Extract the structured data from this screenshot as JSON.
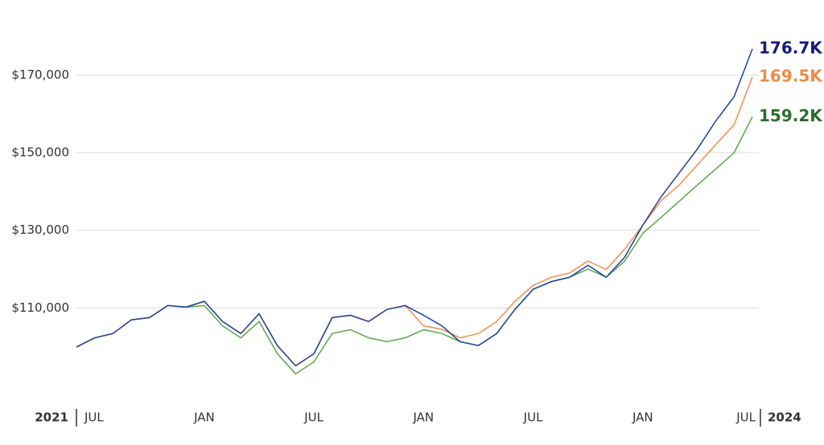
{
  "chart_data": {
    "type": "line",
    "x": [
      "2021-06",
      "2021-07",
      "2021-08",
      "2021-09",
      "2021-10",
      "2021-11",
      "2021-12",
      "2022-01",
      "2022-02",
      "2022-03",
      "2022-04",
      "2022-05",
      "2022-06",
      "2022-07",
      "2022-08",
      "2022-09",
      "2022-10",
      "2022-11",
      "2022-12",
      "2023-01",
      "2023-02",
      "2023-03",
      "2023-04",
      "2023-05",
      "2023-06",
      "2023-07",
      "2023-08",
      "2023-09",
      "2023-10",
      "2023-11",
      "2023-12",
      "2024-01",
      "2024-02",
      "2024-03",
      "2024-04",
      "2024-05",
      "2024-06",
      "2024-07"
    ],
    "xlim": [
      "2021-06",
      "2024-07"
    ],
    "xticks": [
      {
        "value": "2021-07",
        "label": "JUL"
      },
      {
        "value": "2022-01",
        "label": "JAN"
      },
      {
        "value": "2022-07",
        "label": "JUL"
      },
      {
        "value": "2023-01",
        "label": "JAN"
      },
      {
        "value": "2023-07",
        "label": "JUL"
      },
      {
        "value": "2024-01",
        "label": "JAN"
      },
      {
        "value": "2024-07",
        "label": "JUL"
      }
    ],
    "x_year_start": "2021",
    "x_year_end": "2024",
    "ylim": [
      90000,
      180000
    ],
    "yticks": [
      {
        "value": 110000,
        "label": "$110,000"
      },
      {
        "value": 130000,
        "label": "$130,000"
      },
      {
        "value": 150000,
        "label": "$150,000"
      },
      {
        "value": 170000,
        "label": "$170,000"
      }
    ],
    "grid": true,
    "series": [
      {
        "color": "#5aa84a",
        "label_color": "#2e6b2e",
        "values": [
          99900,
          102300,
          103400,
          106900,
          107500,
          110600,
          110200,
          110600,
          105400,
          102300,
          106500,
          98200,
          93000,
          96100,
          103400,
          104400,
          102300,
          101300,
          102300,
          104400,
          103400,
          101300,
          100300,
          103400,
          109600,
          114800,
          116800,
          117900,
          120000,
          117900,
          122000,
          129200,
          133300,
          137500,
          141700,
          145800,
          150000,
          159200
        ],
        "value_labels": [
          null,
          null,
          null,
          null,
          null,
          null,
          null,
          null,
          null,
          null,
          null,
          null,
          null,
          null,
          null,
          null,
          null,
          null,
          null,
          null,
          null,
          null,
          null,
          null,
          null,
          null,
          null,
          null,
          null,
          null,
          null,
          null,
          null,
          null,
          null,
          null,
          null,
          "159.2K"
        ]
      },
      {
        "color": "#f28e4b",
        "label_color": "#f08a48",
        "values": [
          99900,
          102300,
          103400,
          106900,
          107500,
          110600,
          110200,
          111700,
          106500,
          103400,
          108500,
          100300,
          95100,
          98200,
          107500,
          108100,
          106500,
          109600,
          110600,
          105400,
          104500,
          102300,
          103400,
          106500,
          111700,
          115800,
          117900,
          119000,
          122100,
          119900,
          125100,
          131300,
          137600,
          141700,
          146900,
          152100,
          157200,
          169500
        ],
        "value_labels": [
          null,
          null,
          null,
          null,
          null,
          null,
          null,
          null,
          null,
          null,
          null,
          null,
          null,
          null,
          null,
          null,
          null,
          null,
          null,
          null,
          null,
          null,
          null,
          null,
          null,
          null,
          null,
          null,
          null,
          null,
          null,
          null,
          null,
          null,
          null,
          null,
          null,
          "169.5K"
        ]
      },
      {
        "color": "#1f3f9e",
        "label_color": "#161a78",
        "values": [
          99900,
          102300,
          103400,
          106900,
          107500,
          110600,
          110200,
          111700,
          106500,
          103400,
          108500,
          100300,
          95100,
          98200,
          107500,
          108100,
          106500,
          109600,
          110600,
          108100,
          105400,
          101300,
          100300,
          103400,
          109600,
          114800,
          116800,
          117900,
          121000,
          117900,
          123000,
          131300,
          138600,
          144800,
          151000,
          158200,
          164400,
          176700
        ],
        "value_labels": [
          null,
          null,
          null,
          null,
          null,
          null,
          null,
          null,
          null,
          null,
          null,
          null,
          null,
          null,
          null,
          null,
          null,
          null,
          null,
          null,
          null,
          null,
          null,
          null,
          null,
          null,
          null,
          null,
          null,
          null,
          null,
          null,
          null,
          null,
          null,
          null,
          null,
          "176.7K"
        ]
      }
    ]
  }
}
